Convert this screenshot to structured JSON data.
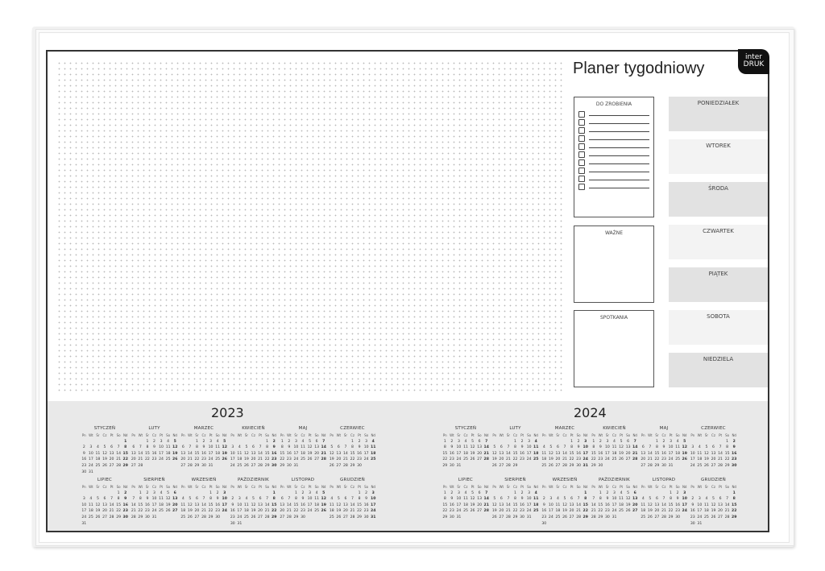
{
  "planner": {
    "title": "Planer tygodniowy",
    "logo": {
      "line1": "inter",
      "line2": "DRUK"
    },
    "todo": {
      "label": "DO ZROBIENIA",
      "item_count": 10
    },
    "important": {
      "label": "WAŻNE"
    },
    "meetings": {
      "label": "SPOTKANIA"
    },
    "days": [
      "PONIEDZIAŁEK",
      "WTOREK",
      "ŚRODA",
      "CZWARTEK",
      "PIĄTEK",
      "SOBOTA",
      "NIEDZIELA"
    ]
  },
  "calendar": {
    "weekdays": [
      "Pn",
      "Wt",
      "Śr",
      "Cz",
      "Pt",
      "So",
      "Nd"
    ],
    "months": [
      "STYCZEŃ",
      "LUTY",
      "MARZEC",
      "KWIECIEŃ",
      "MAJ",
      "CZERWIEC",
      "LIPIEC",
      "SIERPIEŃ",
      "WRZESIEŃ",
      "PAŹDZIERNIK",
      "LISTOPAD",
      "GRUDZIEŃ"
    ],
    "years": [
      "2023",
      "2024"
    ]
  },
  "colors": {
    "dark_box": "#e2e2e2",
    "light_box": "#f3f3f3",
    "band": "#e9e9e9",
    "frame": "#333333"
  }
}
